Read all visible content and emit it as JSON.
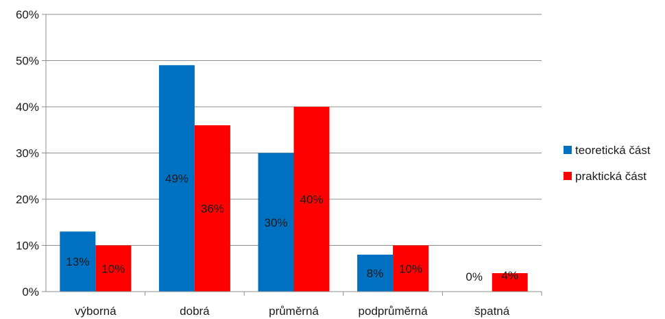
{
  "chart_data": {
    "type": "bar",
    "categories": [
      "výborná",
      "dobrá",
      "průměrná",
      "podprůměrná",
      "špatná"
    ],
    "series": [
      {
        "name": "teoretická část",
        "color": "#0070C0",
        "values": [
          13,
          49,
          30,
          8,
          0
        ],
        "labels": [
          "13%",
          "49%",
          "30%",
          "8%",
          "0%"
        ]
      },
      {
        "name": "praktická část",
        "color": "#FF0000",
        "values": [
          10,
          36,
          40,
          10,
          4
        ],
        "labels": [
          "10%",
          "36%",
          "40%",
          "10%",
          "4%"
        ]
      }
    ],
    "yticks": [
      "0%",
      "10%",
      "20%",
      "30%",
      "40%",
      "50%",
      "60%"
    ],
    "ylim": [
      0,
      60
    ],
    "grid": true,
    "legend": "right"
  }
}
